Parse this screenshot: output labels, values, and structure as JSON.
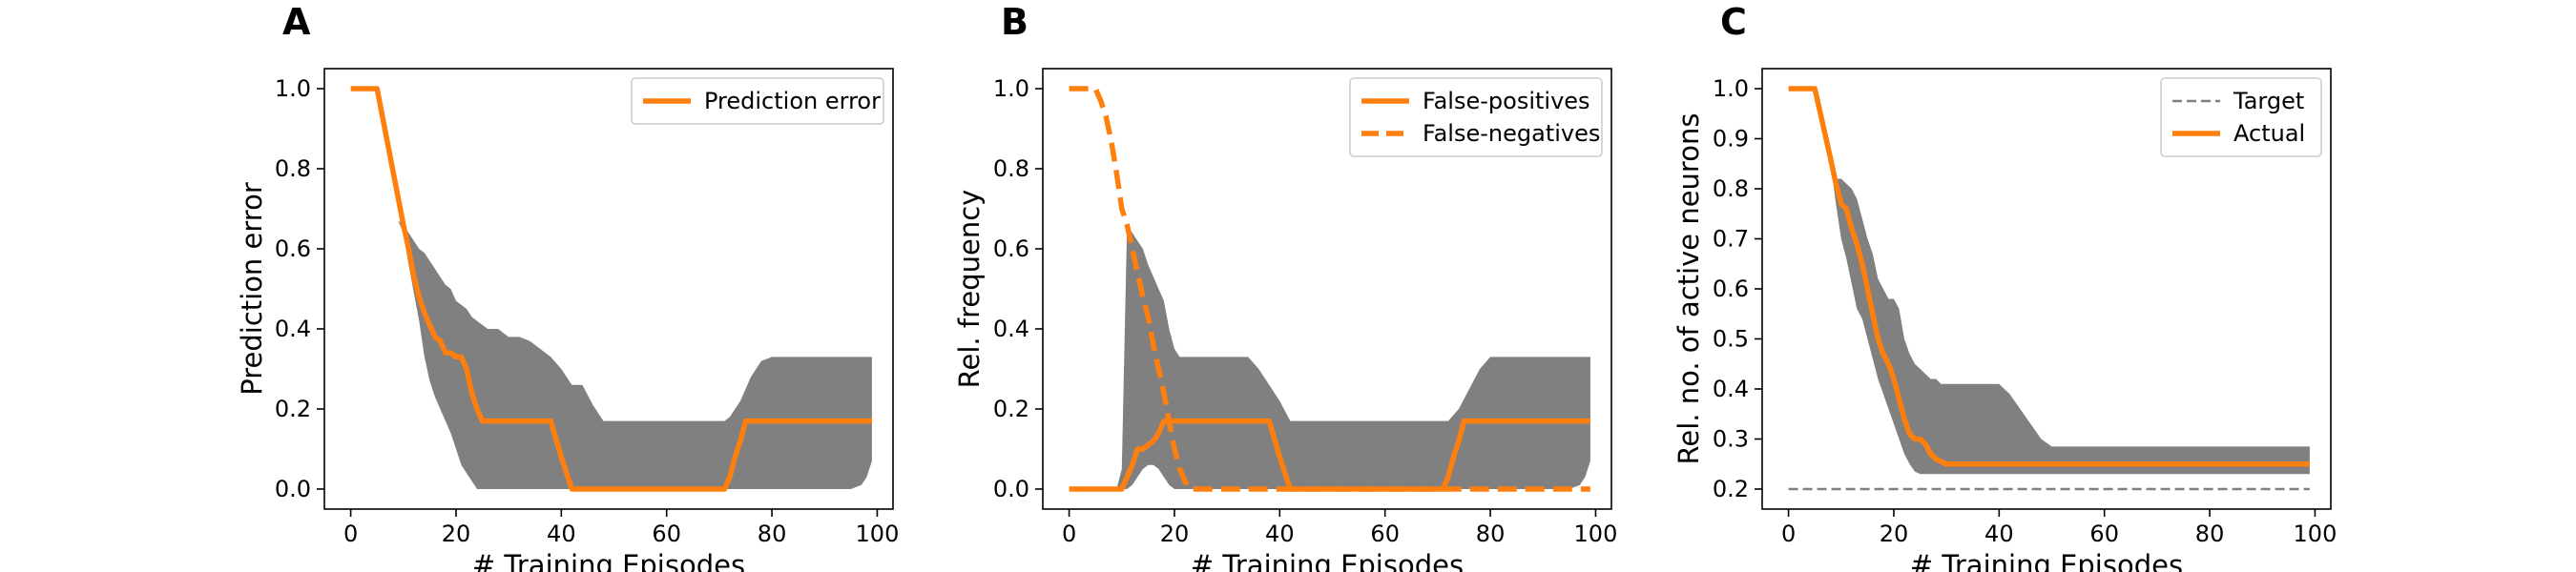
{
  "colors": {
    "line": "#ff7f0e",
    "band": "#808080",
    "target": "#808080"
  },
  "chart_data": [
    {
      "panel": "A",
      "type": "line",
      "xlabel": "# Training Episodes",
      "ylabel": "Prediction error",
      "xlim": [
        -5,
        103
      ],
      "ylim": [
        -0.05,
        1.05
      ],
      "xticks": [
        0,
        20,
        40,
        60,
        80,
        100
      ],
      "yticks": [
        0.0,
        0.2,
        0.4,
        0.6,
        0.8,
        1.0
      ],
      "ytick_labels": [
        "0.0",
        "0.2",
        "0.4",
        "0.6",
        "0.8",
        "1.0"
      ],
      "legend_position": "top-right",
      "bands": [
        {
          "x": [
            0,
            5,
            9,
            10,
            11,
            12,
            13,
            14,
            15,
            16,
            17,
            18,
            19,
            20,
            21,
            22,
            23,
            24,
            25,
            26,
            27,
            28,
            29,
            30,
            32,
            34,
            36,
            38,
            40,
            42,
            44,
            46,
            48,
            50,
            55,
            60,
            65,
            70,
            71,
            72,
            73,
            74,
            75,
            76,
            77,
            78,
            80,
            85,
            90,
            95,
            97,
            98,
            99
          ],
          "upper": [
            1.0,
            1.0,
            0.67,
            0.66,
            0.64,
            0.62,
            0.6,
            0.59,
            0.57,
            0.55,
            0.53,
            0.51,
            0.5,
            0.47,
            0.46,
            0.45,
            0.43,
            0.42,
            0.41,
            0.4,
            0.4,
            0.4,
            0.39,
            0.38,
            0.38,
            0.37,
            0.35,
            0.33,
            0.3,
            0.26,
            0.26,
            0.21,
            0.17,
            0.17,
            0.17,
            0.17,
            0.17,
            0.17,
            0.17,
            0.18,
            0.2,
            0.22,
            0.25,
            0.28,
            0.3,
            0.32,
            0.33,
            0.33,
            0.33,
            0.33,
            0.33,
            0.33,
            0.33
          ],
          "lower": [
            1.0,
            1.0,
            0.67,
            0.64,
            0.56,
            0.49,
            0.42,
            0.33,
            0.27,
            0.23,
            0.2,
            0.17,
            0.14,
            0.1,
            0.06,
            0.04,
            0.02,
            0.0,
            0.0,
            0.0,
            0.0,
            0.0,
            0.0,
            0.0,
            0.0,
            0.0,
            0.0,
            0.0,
            0.0,
            0.0,
            0.0,
            0.0,
            0.0,
            0.0,
            0.0,
            0.0,
            0.0,
            0.0,
            0.0,
            0.0,
            0.0,
            0.0,
            0.0,
            0.0,
            0.0,
            0.0,
            0.0,
            0.0,
            0.0,
            0.0,
            0.01,
            0.03,
            0.07
          ]
        }
      ],
      "series": [
        {
          "name": "Prediction error",
          "style": "solid",
          "x": [
            0,
            5,
            10,
            11,
            12,
            13,
            14,
            15,
            16,
            17,
            18,
            19,
            20,
            21,
            22,
            23,
            24,
            25,
            26,
            27,
            30,
            35,
            38,
            40,
            42,
            45,
            50,
            60,
            70,
            71,
            72,
            73,
            74,
            75,
            80,
            90,
            99
          ],
          "y": [
            1.0,
            1.0,
            0.66,
            0.6,
            0.53,
            0.48,
            0.44,
            0.41,
            0.38,
            0.37,
            0.34,
            0.34,
            0.33,
            0.33,
            0.3,
            0.24,
            0.2,
            0.17,
            0.17,
            0.17,
            0.17,
            0.17,
            0.17,
            0.08,
            0.0,
            0.0,
            0.0,
            0.0,
            0.0,
            0.0,
            0.03,
            0.08,
            0.12,
            0.17,
            0.17,
            0.17,
            0.17
          ]
        }
      ]
    },
    {
      "panel": "B",
      "type": "line",
      "xlabel": "# Training Episodes",
      "ylabel": "Rel. frequency",
      "xlim": [
        -5,
        103
      ],
      "ylim": [
        -0.05,
        1.05
      ],
      "xticks": [
        0,
        20,
        40,
        60,
        80,
        100
      ],
      "yticks": [
        0.0,
        0.2,
        0.4,
        0.6,
        0.8,
        1.0
      ],
      "ytick_labels": [
        "0.0",
        "0.2",
        "0.4",
        "0.6",
        "0.8",
        "1.0"
      ],
      "legend_position": "top-right",
      "bands": [
        {
          "x": [
            0,
            5,
            9,
            10,
            11,
            12,
            13,
            14,
            15,
            16,
            17,
            18,
            19,
            20,
            21,
            22,
            24,
            26,
            28,
            30,
            32,
            34,
            36,
            38,
            40,
            42,
            45,
            50,
            60,
            70,
            72,
            74,
            76,
            78,
            80,
            85,
            90,
            95,
            97,
            98,
            99
          ],
          "upper": [
            0.0,
            0.0,
            0.0,
            0.05,
            0.66,
            0.64,
            0.62,
            0.6,
            0.56,
            0.53,
            0.5,
            0.47,
            0.4,
            0.35,
            0.33,
            0.33,
            0.33,
            0.33,
            0.33,
            0.33,
            0.33,
            0.33,
            0.3,
            0.26,
            0.22,
            0.17,
            0.17,
            0.17,
            0.17,
            0.17,
            0.17,
            0.2,
            0.25,
            0.3,
            0.33,
            0.33,
            0.33,
            0.33,
            0.33,
            0.33,
            0.33
          ],
          "lower": [
            0.0,
            0.0,
            0.0,
            0.0,
            0.0,
            0.01,
            0.03,
            0.05,
            0.06,
            0.06,
            0.05,
            0.03,
            0.01,
            0.0,
            0.0,
            0.0,
            0.0,
            0.0,
            0.0,
            0.0,
            0.0,
            0.0,
            0.0,
            0.0,
            0.0,
            0.0,
            0.0,
            0.0,
            0.0,
            0.0,
            0.0,
            0.0,
            0.0,
            0.0,
            0.0,
            0.0,
            0.0,
            0.0,
            0.01,
            0.03,
            0.07
          ]
        }
      ],
      "series": [
        {
          "name": "False-positives",
          "style": "solid",
          "x": [
            0,
            10,
            11,
            12,
            13,
            14,
            15,
            16,
            17,
            18,
            19,
            20,
            25,
            30,
            35,
            38,
            40,
            42,
            45,
            50,
            60,
            70,
            71,
            72,
            73,
            74,
            75,
            80,
            90,
            99
          ],
          "y": [
            0.0,
            0.0,
            0.03,
            0.06,
            0.1,
            0.1,
            0.11,
            0.12,
            0.14,
            0.17,
            0.17,
            0.17,
            0.17,
            0.17,
            0.17,
            0.17,
            0.08,
            0.0,
            0.0,
            0.0,
            0.0,
            0.0,
            0.0,
            0.03,
            0.08,
            0.12,
            0.17,
            0.17,
            0.17,
            0.17
          ]
        },
        {
          "name": "False-negatives",
          "style": "dashed",
          "x": [
            0,
            4,
            5,
            6,
            7,
            8,
            9,
            10,
            11,
            12,
            13,
            14,
            15,
            16,
            17,
            18,
            19,
            20,
            21,
            22,
            23,
            25,
            30,
            40,
            50,
            60,
            70,
            80,
            90,
            99
          ],
          "y": [
            1.0,
            1.0,
            1.0,
            0.97,
            0.93,
            0.87,
            0.79,
            0.7,
            0.66,
            0.6,
            0.54,
            0.48,
            0.43,
            0.36,
            0.3,
            0.24,
            0.17,
            0.1,
            0.05,
            0.02,
            0.0,
            0.0,
            0.0,
            0.0,
            0.0,
            0.0,
            0.0,
            0.0,
            0.0,
            0.0
          ]
        }
      ]
    },
    {
      "panel": "C",
      "type": "line",
      "xlabel": "# Training Episodes",
      "ylabel": "Rel. no. of active neurons",
      "xlim": [
        -5,
        103
      ],
      "ylim": [
        0.16,
        1.04
      ],
      "xticks": [
        0,
        20,
        40,
        60,
        80,
        100
      ],
      "yticks": [
        0.2,
        0.3,
        0.4,
        0.5,
        0.6,
        0.7,
        0.8,
        0.9,
        1.0
      ],
      "ytick_labels": [
        "0.2",
        "0.3",
        "0.4",
        "0.5",
        "0.6",
        "0.7",
        "0.8",
        "0.9",
        "1.0"
      ],
      "legend_position": "top-right",
      "bands": [
        {
          "x": [
            0,
            5,
            8,
            9,
            10,
            11,
            12,
            13,
            14,
            15,
            16,
            17,
            18,
            19,
            20,
            21,
            22,
            23,
            24,
            25,
            26,
            27,
            28,
            29,
            30,
            32,
            34,
            36,
            38,
            40,
            42,
            44,
            46,
            48,
            50,
            60,
            70,
            80,
            90,
            99
          ],
          "upper": [
            1.0,
            1.0,
            0.85,
            0.82,
            0.82,
            0.81,
            0.8,
            0.78,
            0.74,
            0.7,
            0.67,
            0.62,
            0.6,
            0.58,
            0.58,
            0.56,
            0.5,
            0.47,
            0.45,
            0.44,
            0.43,
            0.42,
            0.42,
            0.41,
            0.41,
            0.41,
            0.41,
            0.41,
            0.41,
            0.41,
            0.39,
            0.36,
            0.33,
            0.3,
            0.285,
            0.285,
            0.285,
            0.285,
            0.285,
            0.285
          ],
          "lower": [
            1.0,
            1.0,
            0.85,
            0.77,
            0.7,
            0.66,
            0.61,
            0.56,
            0.54,
            0.5,
            0.46,
            0.42,
            0.39,
            0.36,
            0.33,
            0.3,
            0.27,
            0.25,
            0.235,
            0.23,
            0.23,
            0.23,
            0.23,
            0.23,
            0.23,
            0.23,
            0.23,
            0.23,
            0.23,
            0.23,
            0.23,
            0.23,
            0.23,
            0.23,
            0.23,
            0.23,
            0.23,
            0.23,
            0.23,
            0.23
          ]
        }
      ],
      "series": [
        {
          "name": "Target",
          "style": "dashed-thin",
          "x": [
            0,
            99
          ],
          "y": [
            0.2,
            0.2
          ]
        },
        {
          "name": "Actual",
          "style": "solid",
          "x": [
            0,
            5,
            8,
            9,
            10,
            11,
            12,
            13,
            14,
            15,
            16,
            17,
            18,
            19,
            20,
            21,
            22,
            23,
            24,
            25,
            26,
            27,
            28,
            29,
            30,
            35,
            40,
            50,
            60,
            70,
            80,
            90,
            99
          ],
          "y": [
            1.0,
            1.0,
            0.86,
            0.81,
            0.77,
            0.76,
            0.72,
            0.69,
            0.65,
            0.6,
            0.55,
            0.5,
            0.47,
            0.45,
            0.42,
            0.38,
            0.34,
            0.31,
            0.3,
            0.3,
            0.29,
            0.27,
            0.26,
            0.255,
            0.25,
            0.25,
            0.25,
            0.25,
            0.25,
            0.25,
            0.25,
            0.25,
            0.25
          ]
        }
      ]
    }
  ]
}
